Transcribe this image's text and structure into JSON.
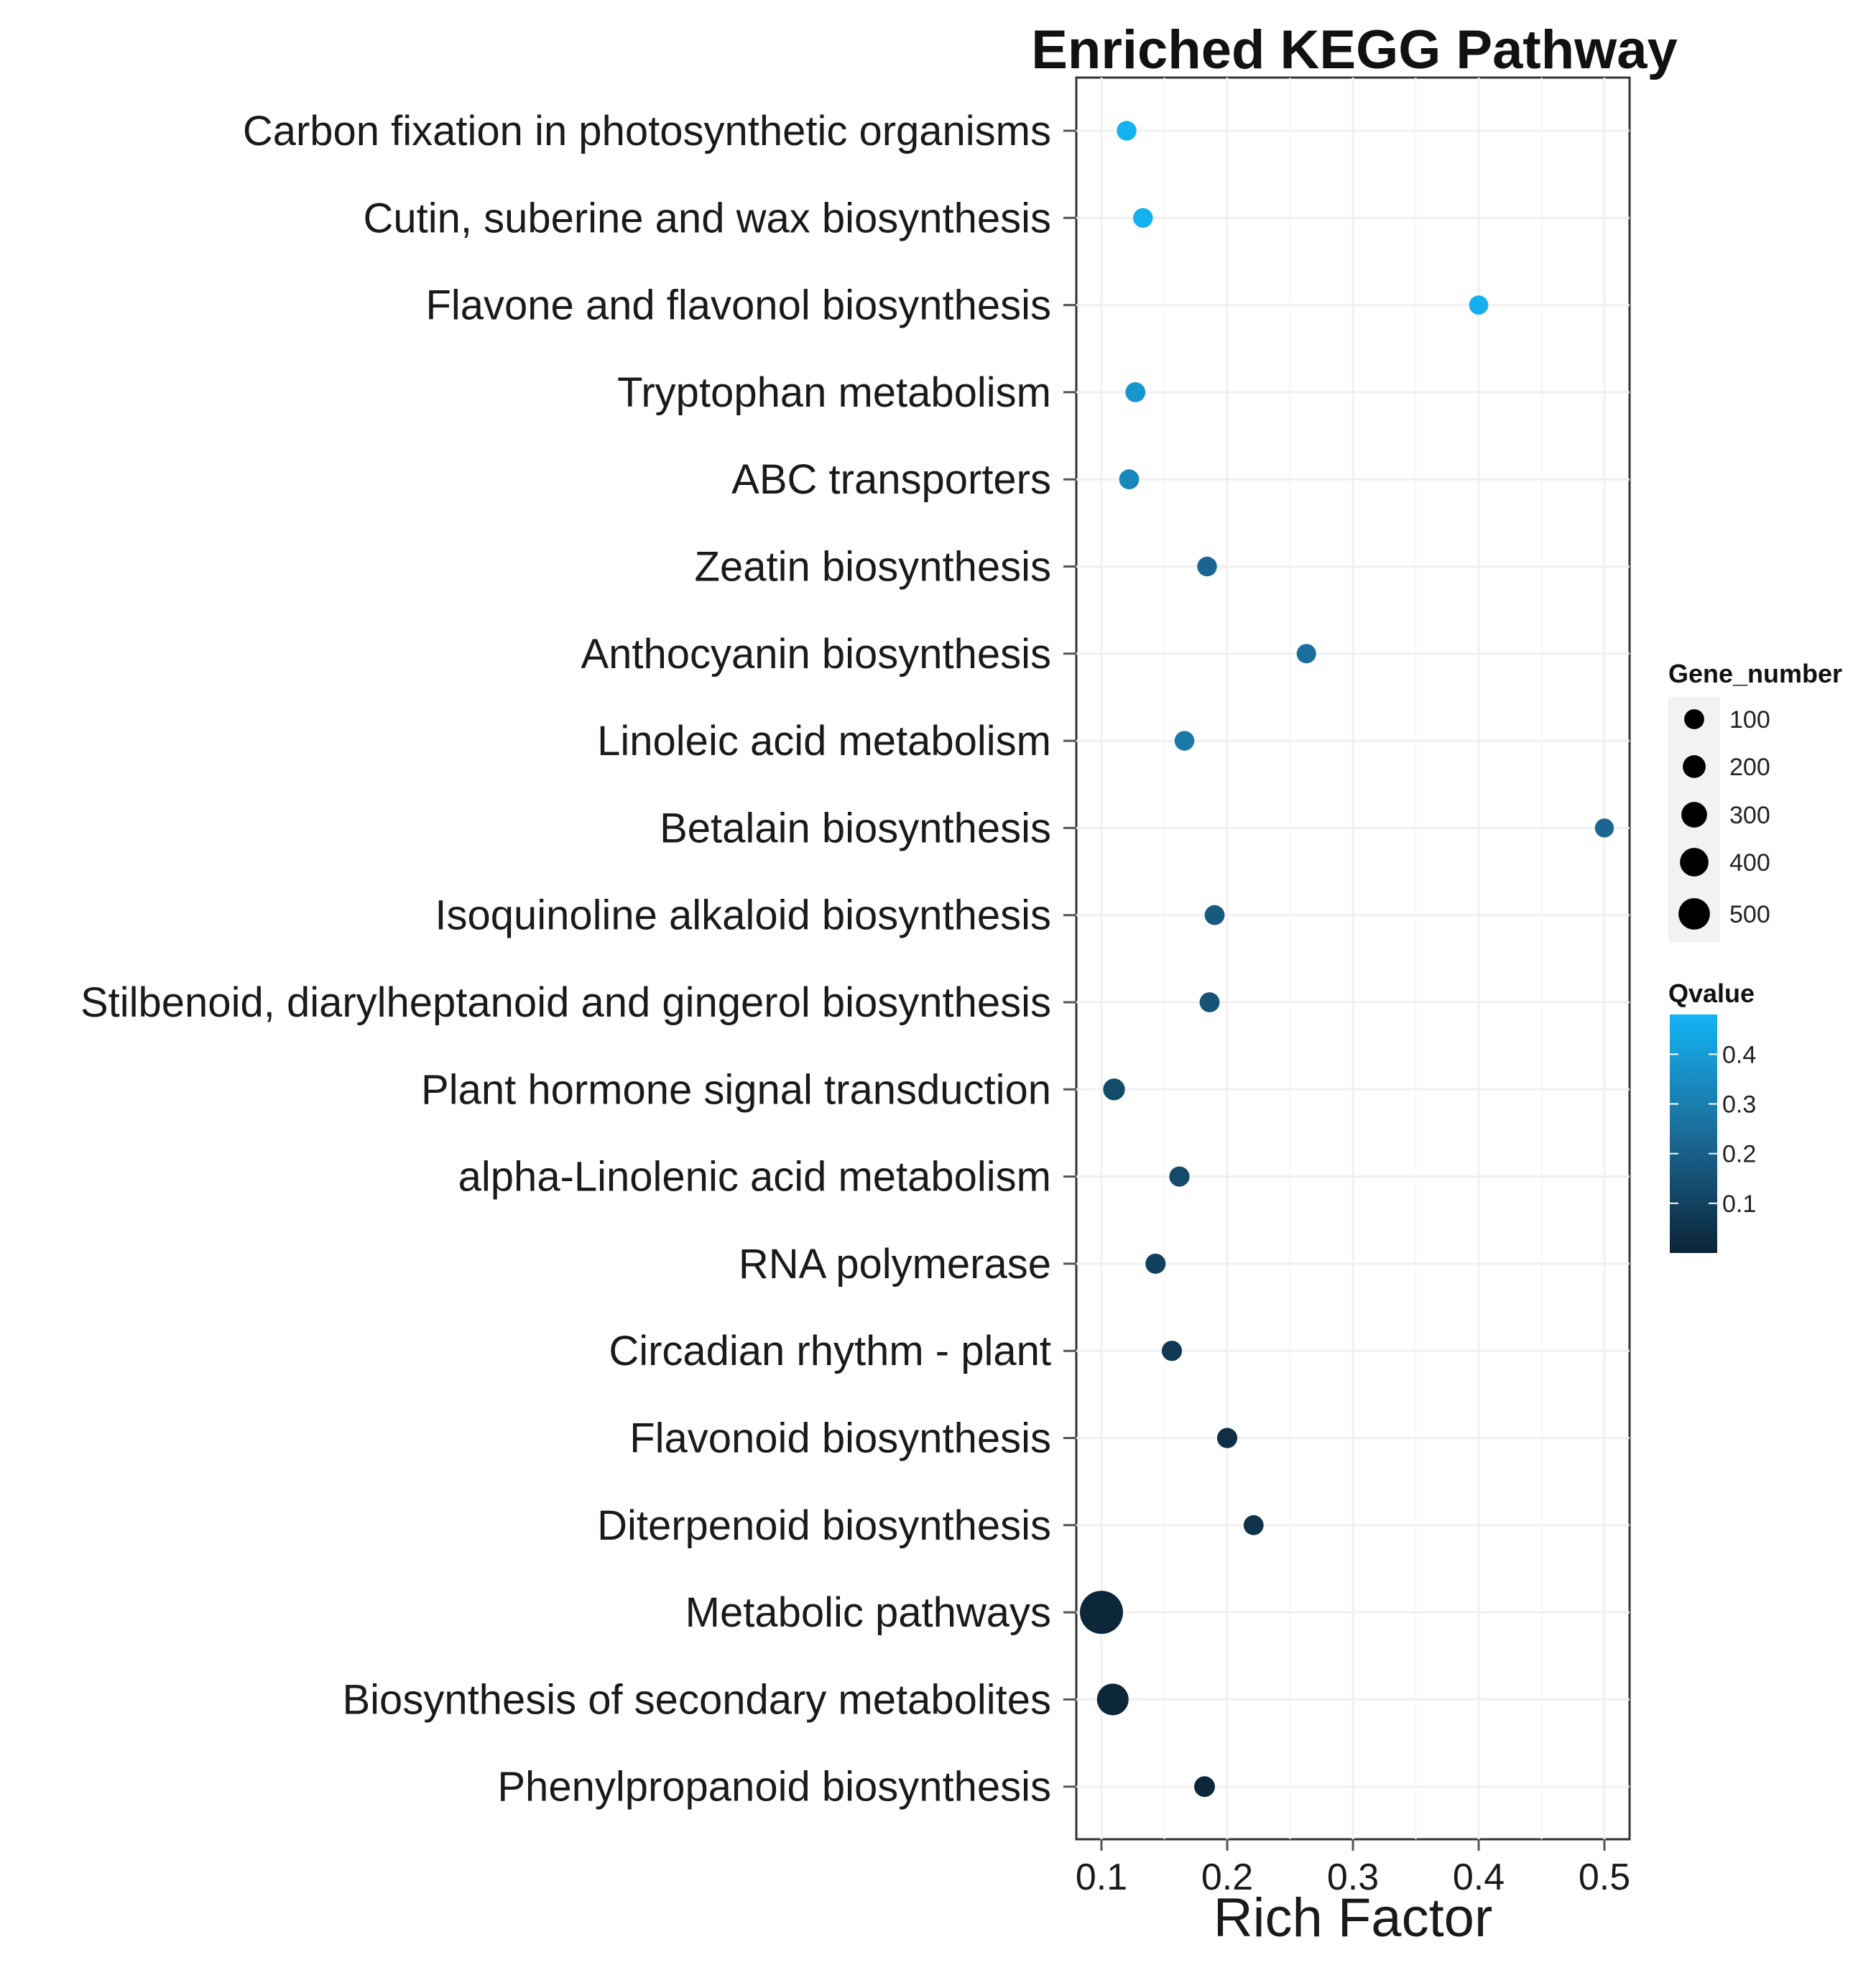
{
  "chart_data": {
    "type": "scatter",
    "title": "Enriched KEGG Pathway",
    "xlabel": "Rich Factor",
    "ylabel": "",
    "xlim": [
      0.08,
      0.52
    ],
    "xticks": [
      0.1,
      0.2,
      0.3,
      0.4,
      0.5
    ],
    "xtick_labels": [
      "0.1",
      "0.2",
      "0.3",
      "0.4",
      "0.5"
    ],
    "grid": true,
    "points": [
      {
        "pathway": "Carbon fixation in photosynthetic organisms",
        "rich_factor": 0.12,
        "gene_number": 70,
        "qvalue": 0.47
      },
      {
        "pathway": "Cutin, suberine and wax biosynthesis",
        "rich_factor": 0.133,
        "gene_number": 70,
        "qvalue": 0.47
      },
      {
        "pathway": "Flavone and flavonol biosynthesis",
        "rich_factor": 0.4,
        "gene_number": 60,
        "qvalue": 0.46
      },
      {
        "pathway": "Tryptophan metabolism",
        "rich_factor": 0.127,
        "gene_number": 75,
        "qvalue": 0.38
      },
      {
        "pathway": "ABC transporters",
        "rich_factor": 0.122,
        "gene_number": 75,
        "qvalue": 0.33
      },
      {
        "pathway": "Zeatin biosynthesis",
        "rich_factor": 0.184,
        "gene_number": 70,
        "qvalue": 0.22
      },
      {
        "pathway": "Anthocyanin biosynthesis",
        "rich_factor": 0.263,
        "gene_number": 65,
        "qvalue": 0.25
      },
      {
        "pathway": "Linoleic acid metabolism",
        "rich_factor": 0.166,
        "gene_number": 70,
        "qvalue": 0.28
      },
      {
        "pathway": "Betalain biosynthesis",
        "rich_factor": 0.5,
        "gene_number": 55,
        "qvalue": 0.22
      },
      {
        "pathway": "Isoquinoline alkaloid biosynthesis",
        "rich_factor": 0.19,
        "gene_number": 75,
        "qvalue": 0.18
      },
      {
        "pathway": "Stilbenoid, diarylheptanoid and gingerol biosynthesis",
        "rich_factor": 0.186,
        "gene_number": 75,
        "qvalue": 0.16
      },
      {
        "pathway": "Plant hormone signal transduction",
        "rich_factor": 0.11,
        "gene_number": 110,
        "qvalue": 0.13
      },
      {
        "pathway": "alpha-Linolenic acid metabolism",
        "rich_factor": 0.162,
        "gene_number": 80,
        "qvalue": 0.13
      },
      {
        "pathway": "RNA polymerase",
        "rich_factor": 0.143,
        "gene_number": 80,
        "qvalue": 0.1
      },
      {
        "pathway": "Circadian rhythm - plant",
        "rich_factor": 0.156,
        "gene_number": 80,
        "qvalue": 0.07
      },
      {
        "pathway": "Flavonoid biosynthesis",
        "rich_factor": 0.2,
        "gene_number": 80,
        "qvalue": 0.04
      },
      {
        "pathway": "Diterpenoid biosynthesis",
        "rich_factor": 0.221,
        "gene_number": 75,
        "qvalue": 0.05
      },
      {
        "pathway": "Metabolic pathways",
        "rich_factor": 0.1,
        "gene_number": 520,
        "qvalue": 0.01
      },
      {
        "pathway": "Biosynthesis of secondary metabolites",
        "rich_factor": 0.109,
        "gene_number": 300,
        "qvalue": 0.01
      },
      {
        "pathway": "Phenylpropanoid biosynthesis",
        "rich_factor": 0.182,
        "gene_number": 90,
        "qvalue": 0.01
      }
    ],
    "size_legend": {
      "title": "Gene_number",
      "values": [
        100,
        200,
        300,
        400,
        500
      ],
      "labels": [
        "100",
        "200",
        "300",
        "400",
        "500"
      ]
    },
    "color_legend": {
      "title": "Qvalue",
      "range": [
        0.0,
        0.48
      ],
      "ticks": [
        0.1,
        0.2,
        0.3,
        0.4
      ],
      "tick_labels": [
        "0.1",
        "0.2",
        "0.3",
        "0.4"
      ],
      "low_color": "#0b2336",
      "high_color": "#14b4f5"
    }
  }
}
